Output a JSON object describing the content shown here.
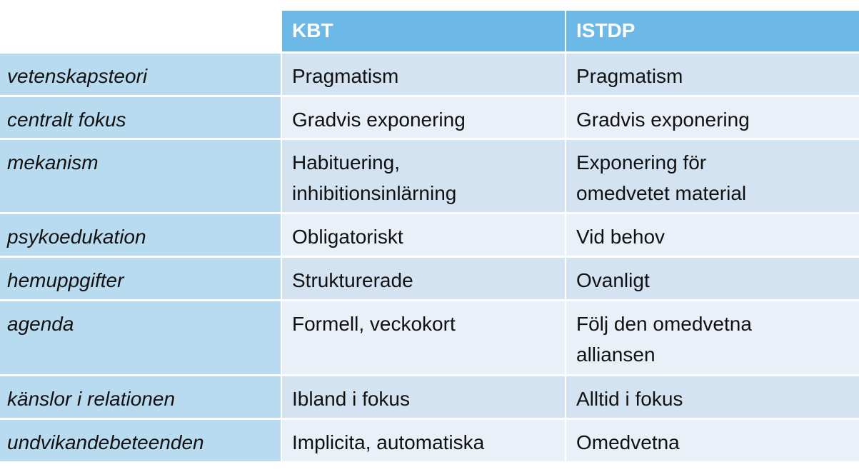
{
  "header": {
    "columns": [
      "KBT",
      "ISTDP"
    ]
  },
  "table": {
    "rows": [
      [
        "vetenskapsteori",
        "Pragmatism",
        "Pragmatism"
      ],
      [
        "centralt fokus",
        "Gradvis exponering",
        "Gradvis exponering"
      ],
      [
        "mekanism",
        "Habituering,\ninhibitionsinlärning",
        "Exponering för\nomedvetet material"
      ],
      [
        "psykoedukation",
        "Obligatoriskt",
        "Vid behov"
      ],
      [
        "hemuppgifter",
        "Strukturerade",
        "Ovanligt"
      ],
      [
        "agenda",
        "Formell, veckokort",
        "Följ den omedvetna\nalliansen"
      ],
      [
        "känslor i relationen",
        "Ibland i fokus",
        "Alltid i fokus"
      ],
      [
        "undvikandebeteenden",
        "Implicita, automatiska",
        "Omedvetna"
      ]
    ]
  }
}
